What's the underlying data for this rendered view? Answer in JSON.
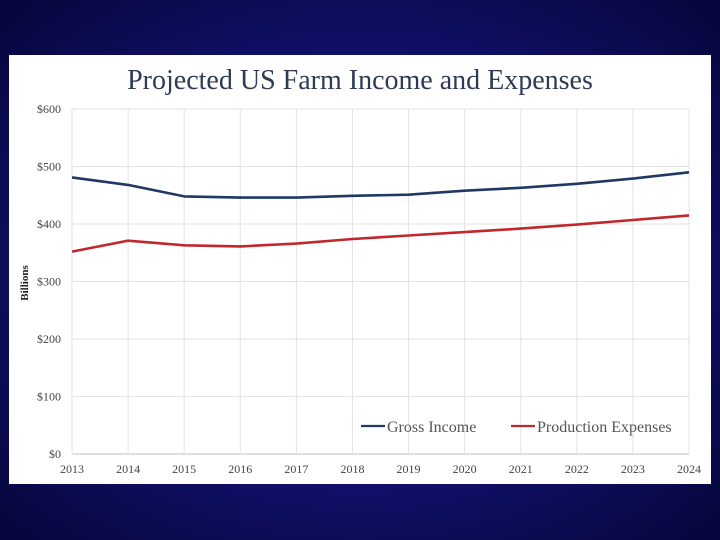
{
  "chart_data": {
    "type": "line",
    "title": "Projected US Farm Income and Expenses",
    "xlabel": "",
    "ylabel": "Billions",
    "x": [
      "2013",
      "2014",
      "2015",
      "2016",
      "2017",
      "2018",
      "2019",
      "2020",
      "2021",
      "2022",
      "2023",
      "2024"
    ],
    "ylim": [
      0,
      600
    ],
    "yticks": [
      0,
      100,
      200,
      300,
      400,
      500,
      600
    ],
    "ytick_labels": [
      "$0",
      "$100",
      "$200",
      "$300",
      "$400",
      "$500",
      "$600"
    ],
    "grid": true,
    "legend_position": "bottom-right",
    "series": [
      {
        "name": "Gross Income",
        "color": "#1f3864",
        "values": [
          481,
          468,
          448,
          446,
          446,
          449,
          451,
          458,
          463,
          470,
          479,
          490
        ]
      },
      {
        "name": "Production Expenses",
        "color": "#c0282d",
        "values": [
          352,
          371,
          363,
          361,
          366,
          374,
          380,
          386,
          392,
          399,
          407,
          415
        ]
      }
    ]
  }
}
